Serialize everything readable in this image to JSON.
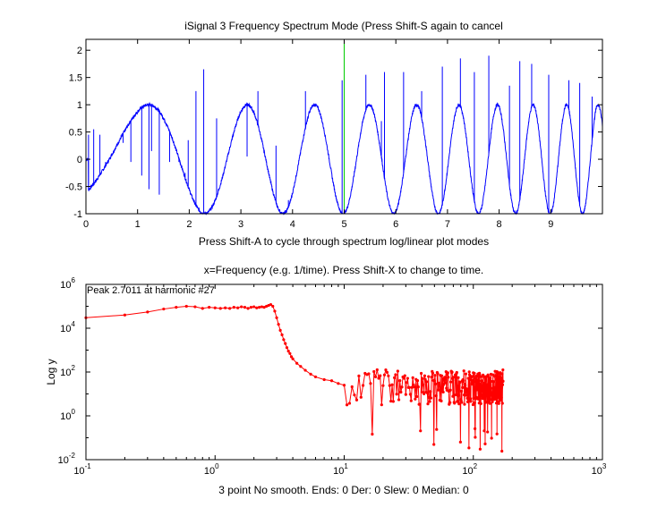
{
  "window_title": "iSignal 3   Frequency Spectrum Mode (Press Shift-S again to cancel",
  "chart_data": [
    {
      "type": "line",
      "title": "iSignal 3   Frequency Spectrum Mode (Press Shift-S again to cancel",
      "xlabel": "Press Shift-A to cycle through spectrum log/linear plot modes",
      "ylabel": "",
      "xlim": [
        0,
        10
      ],
      "ylim": [
        -1,
        2.2
      ],
      "x_ticks": [
        "0",
        "1",
        "2",
        "3",
        "4",
        "5",
        "6",
        "7",
        "8",
        "9"
      ],
      "y_ticks": [
        "-1",
        "-0.5",
        "0",
        "0.5",
        "1",
        "1.5",
        "2"
      ],
      "x_tick_values": [
        0,
        1,
        2,
        3,
        4,
        5,
        6,
        7,
        8,
        9
      ],
      "y_tick_values": [
        -1,
        -0.5,
        0,
        0.5,
        1,
        1.5,
        2
      ],
      "grid": false,
      "series_color": "#0000ff",
      "cursor": {
        "x": 5,
        "color": "#00cc00"
      },
      "signal": "chirp: sin of a frequency rising from near 0 to about 1.7 per unit time, amplitude 1, with sharp noise spikes",
      "spikes": [
        {
          "x": 0.05,
          "y": 0.45
        },
        {
          "x": 0.15,
          "y": 0.55
        },
        {
          "x": 0.27,
          "y": 0.45
        },
        {
          "x": 0.38,
          "y": -0.05
        },
        {
          "x": 0.72,
          "y": 0.3
        },
        {
          "x": 0.87,
          "y": -0.05
        },
        {
          "x": 1.08,
          "y": -0.3
        },
        {
          "x": 1.22,
          "y": -0.55
        },
        {
          "x": 1.27,
          "y": 0.15
        },
        {
          "x": 1.42,
          "y": -0.65
        },
        {
          "x": 1.62,
          "y": -0.05
        },
        {
          "x": 1.8,
          "y": -0.05
        },
        {
          "x": 1.92,
          "y": -0.25
        },
        {
          "x": 1.98,
          "y": 0.35
        },
        {
          "x": 2.13,
          "y": 1.25
        },
        {
          "x": 2.28,
          "y": 1.65
        },
        {
          "x": 2.53,
          "y": 0.75
        },
        {
          "x": 3.12,
          "y": 0.05
        },
        {
          "x": 3.33,
          "y": 1.25
        },
        {
          "x": 3.68,
          "y": 0.25
        },
        {
          "x": 3.92,
          "y": -0.75
        },
        {
          "x": 4.25,
          "y": 1.25
        },
        {
          "x": 4.55,
          "y": 0.75
        },
        {
          "x": 4.96,
          "y": 1.45
        },
        {
          "x": 5.42,
          "y": 1.55
        },
        {
          "x": 5.72,
          "y": 0.7
        },
        {
          "x": 5.78,
          "y": 1.6
        },
        {
          "x": 6.15,
          "y": 1.6
        },
        {
          "x": 6.5,
          "y": 1.25
        },
        {
          "x": 6.9,
          "y": 1.7
        },
        {
          "x": 7.25,
          "y": 1.85
        },
        {
          "x": 7.52,
          "y": 1.6
        },
        {
          "x": 7.8,
          "y": 1.9
        },
        {
          "x": 8.2,
          "y": 1.35
        },
        {
          "x": 8.4,
          "y": 1.8
        },
        {
          "x": 8.63,
          "y": 1.75
        },
        {
          "x": 8.96,
          "y": 1.55
        },
        {
          "x": 9.35,
          "y": 1.45
        },
        {
          "x": 9.56,
          "y": 1.4
        },
        {
          "x": 9.8,
          "y": 1.15
        }
      ]
    },
    {
      "type": "line",
      "title": "x=Frequency (e.g. 1/time). Press Shift-X to change to time.",
      "xlabel": "3 point No smooth. Ends: 0    Der: 0    Slew: 0    Median: 0",
      "ylabel": "Log y",
      "x_scale": "log",
      "y_scale": "log",
      "xlim": [
        0.1,
        1000
      ],
      "ylim": [
        0.01,
        1000000
      ],
      "x_ticks_base": "10",
      "x_ticks_exp": [
        "-1",
        "0",
        "1",
        "2",
        "3"
      ],
      "y_ticks_base": "10",
      "y_ticks_exp": [
        "-2",
        "0",
        "2",
        "4",
        "6"
      ],
      "grid": false,
      "series_color": "#ff0000",
      "marker": "dot",
      "annotation": "Peak 2.7011 at harmonic #27",
      "series": [
        {
          "x": [
            0.1,
            0.2,
            0.3,
            0.4,
            0.5,
            0.6,
            0.7,
            0.8,
            0.9,
            1.0,
            1.1,
            1.2,
            1.3,
            1.4,
            1.5,
            1.6,
            1.7,
            1.8,
            1.9,
            2.0,
            2.1,
            2.2,
            2.3,
            2.4,
            2.5,
            2.6,
            2.7,
            2.8,
            2.9,
            3.0,
            3.1,
            3.2,
            3.3,
            3.4,
            3.5,
            3.6,
            3.7,
            3.8,
            3.9,
            4.0,
            4.3,
            4.6,
            5.0,
            5.5,
            6.0,
            7.0,
            8.0,
            9.0,
            10
          ],
          "y": [
            30000,
            40000,
            55000,
            75000,
            90000,
            100000,
            95000,
            80000,
            90000,
            85000,
            80000,
            85000,
            80000,
            90000,
            85000,
            95000,
            90000,
            80000,
            90000,
            95000,
            85000,
            90000,
            95000,
            90000,
            100000,
            110000,
            120000,
            100000,
            60000,
            30000,
            15000,
            8000,
            5000,
            3000,
            2000,
            1300,
            900,
            700,
            500,
            400,
            250,
            180,
            120,
            80,
            60,
            45,
            40,
            30,
            25
          ]
        }
      ],
      "noise_floor": {
        "x_range": [
          10,
          170
        ],
        "y_typical": 20,
        "y_high": 100,
        "y_low": 0.02
      }
    }
  ]
}
